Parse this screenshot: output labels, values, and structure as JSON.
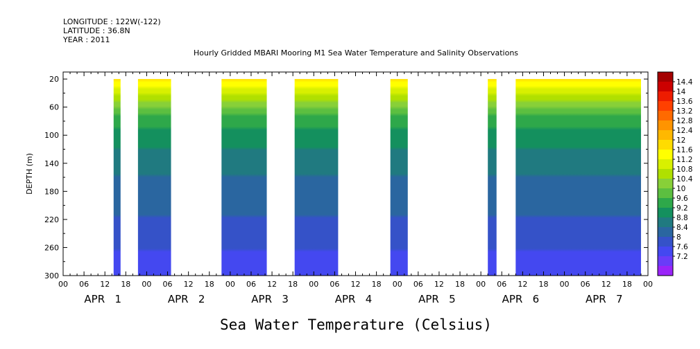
{
  "header": {
    "longitude": "LONGITUDE : 122W(-122)",
    "latitude": "LATITUDE : 36.8N",
    "year": "YEAR : 2011"
  },
  "chart_data": {
    "type": "heatmap",
    "title": "Hourly Gridded MBARI Mooring M1 Sea Water Temperature and Salinity Observations",
    "xlabel": "Sea Water Temperature (Celsius)",
    "ylabel": "DEPTH (m)",
    "y_ticks": [
      "20",
      "60",
      "100",
      "140",
      "180",
      "220",
      "260",
      "300"
    ],
    "y_range": [
      10,
      300
    ],
    "y_inverted": true,
    "x_hour_ticks": [
      "00",
      "06",
      "12",
      "18",
      "00",
      "06",
      "12",
      "18",
      "00",
      "06",
      "12",
      "18",
      "00",
      "06",
      "12",
      "18",
      "00",
      "06",
      "12",
      "18",
      "00",
      "06",
      "12",
      "18",
      "00",
      "06",
      "12",
      "18",
      "00"
    ],
    "x_day_labels": [
      "APR   1",
      "APR   2",
      "APR   3",
      "APR   4",
      "APR   5",
      "APR   6",
      "APR   7"
    ],
    "data_segments_hours": [
      [
        14.5,
        16.5
      ],
      [
        21.5,
        31
      ],
      [
        45.5,
        58.5
      ],
      [
        66.5,
        79
      ],
      [
        94,
        99
      ],
      [
        122,
        124.5
      ],
      [
        130,
        166
      ]
    ],
    "colorbar_levels": [
      "14.4",
      "14",
      "13.6",
      "13.2",
      "12.8",
      "12.4",
      "12",
      "11.6",
      "11.2",
      "10.8",
      "10.4",
      "10",
      "9.6",
      "9.2",
      "8.8",
      "8.4",
      "8",
      "7.6",
      "7.2"
    ],
    "colorbar_colors": [
      "#a40000",
      "#cc0000",
      "#ee1c00",
      "#ff4000",
      "#ff6a00",
      "#ff9400",
      "#ffb800",
      "#ffdc00",
      "#ffff00",
      "#d8f000",
      "#b0e000",
      "#88d038",
      "#5cbf40",
      "#2ea84a",
      "#14905e",
      "#207a80",
      "#2a66a0",
      "#3552c8",
      "#4448f0",
      "#6a3cf8",
      "#9a24f8"
    ],
    "depth_profile": [
      {
        "depth": 20,
        "value": 11.4
      },
      {
        "depth": 40,
        "value": 10.4
      },
      {
        "depth": 60,
        "value": 9.6
      },
      {
        "depth": 80,
        "value": 9.2
      },
      {
        "depth": 100,
        "value": 8.9
      },
      {
        "depth": 140,
        "value": 8.5
      },
      {
        "depth": 180,
        "value": 8.2
      },
      {
        "depth": 220,
        "value": 7.95
      },
      {
        "depth": 260,
        "value": 7.6
      },
      {
        "depth": 300,
        "value": 7.25
      }
    ]
  }
}
